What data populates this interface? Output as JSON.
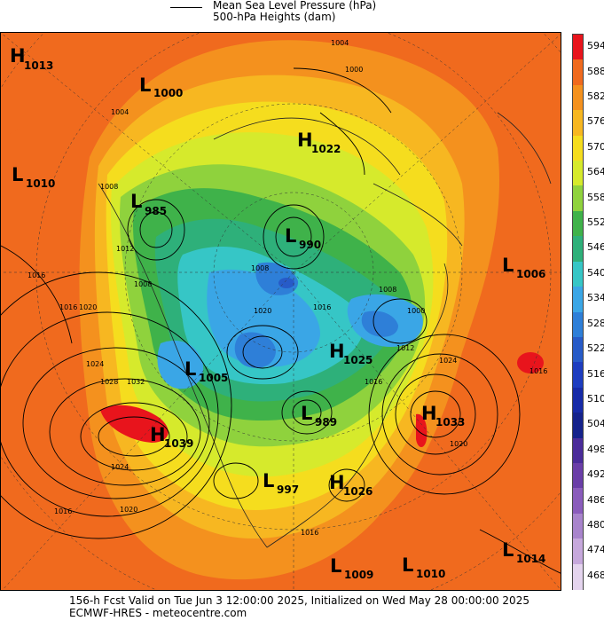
{
  "legend": {
    "mslp_label": "Mean Sea Level Pressure (hPa)",
    "heights_label": "500-hPa Heights (dam)"
  },
  "colorbar": {
    "levels": [
      "594",
      "588",
      "582",
      "576",
      "570",
      "564",
      "558",
      "552",
      "546",
      "540",
      "534",
      "528",
      "522",
      "516",
      "510",
      "504",
      "498",
      "492",
      "486",
      "480",
      "474",
      "468"
    ],
    "colors": [
      "#e8141c",
      "#f06a1e",
      "#f4911e",
      "#f7b721",
      "#f5dd1e",
      "#d6ea2c",
      "#8fd23d",
      "#3fb24a",
      "#2eb07a",
      "#36c6c6",
      "#3aa6e6",
      "#2e7fd8",
      "#275bc8",
      "#1d3dc0",
      "#162aa8",
      "#14228c",
      "#4a2c9a",
      "#6a3ea8",
      "#8a5cbc",
      "#a884cc",
      "#c6a8dc",
      "#e4d4ee"
    ]
  },
  "map": {
    "pressure_centers": [
      {
        "type": "H",
        "value": "1013"
      },
      {
        "type": "L",
        "value": "1000"
      },
      {
        "type": "H",
        "value": "1022"
      },
      {
        "type": "L",
        "value": "1010"
      },
      {
        "type": "L",
        "value": "985"
      },
      {
        "type": "L",
        "value": "990"
      },
      {
        "type": "L",
        "value": "1006"
      },
      {
        "type": "H",
        "value": "1025"
      },
      {
        "type": "L",
        "value": "1005"
      },
      {
        "type": "L",
        "value": "989"
      },
      {
        "type": "H",
        "value": "1033"
      },
      {
        "type": "H",
        "value": "1039"
      },
      {
        "type": "L",
        "value": "997"
      },
      {
        "type": "H",
        "value": "1026"
      },
      {
        "type": "L",
        "value": "1014"
      },
      {
        "type": "L",
        "value": "1009"
      },
      {
        "type": "L",
        "value": "1010"
      }
    ],
    "contour_labels": [
      "1004",
      "1000",
      "1004",
      "1008",
      "1012",
      "1016",
      "1016",
      "1020",
      "1024",
      "1028",
      "1032",
      "1024",
      "1020",
      "1016",
      "1008",
      "1008",
      "1020",
      "1016",
      "1012",
      "1008",
      "1000",
      "1024",
      "1016",
      "1020",
      "1016",
      "1016"
    ]
  },
  "footer": {
    "line1": "156-h Fcst Valid on Tue Jun  3 12:00:00 2025, Initialized on Wed May 28 00:00:00 2025",
    "line2": "ECMWF-HRES  - meteocentre.com"
  }
}
